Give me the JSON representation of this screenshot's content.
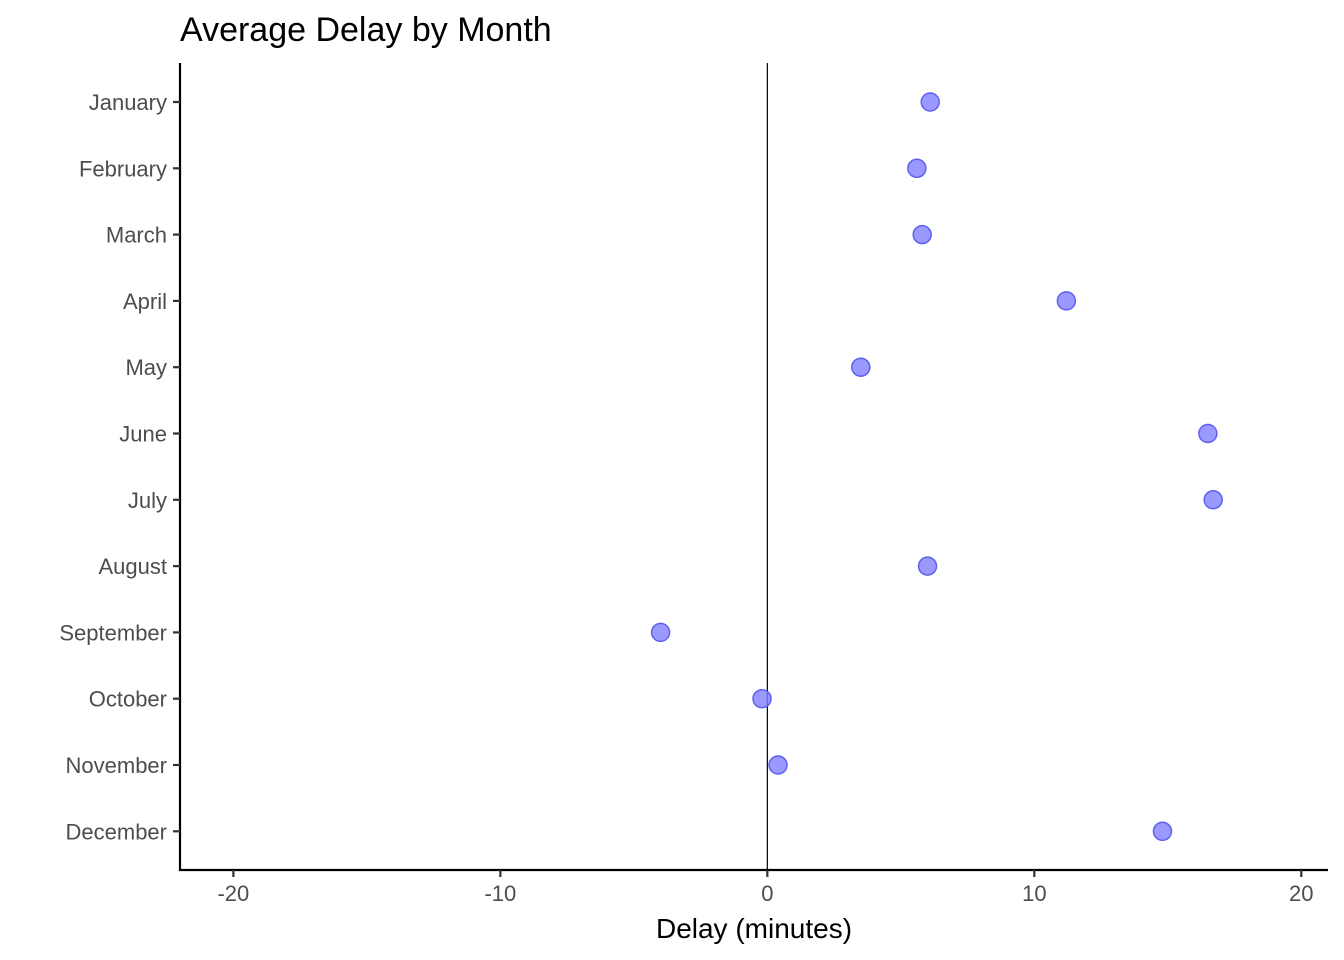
{
  "chart_data": {
    "type": "scatter",
    "title": "Average Delay by Month",
    "xlabel": "Delay (minutes)",
    "ylabel": "",
    "xlim": [
      -22.0,
      21.0
    ],
    "x_ticks": [
      -20,
      -10,
      0,
      10,
      20
    ],
    "x_tick_labels": [
      "-20",
      "-10",
      "0",
      "10",
      "20"
    ],
    "categories": [
      "January",
      "February",
      "March",
      "April",
      "May",
      "June",
      "July",
      "August",
      "September",
      "October",
      "November",
      "December"
    ],
    "values": [
      6.1,
      5.6,
      5.8,
      11.2,
      3.5,
      16.5,
      16.7,
      6.0,
      -4.0,
      -0.2,
      0.4,
      14.8
    ],
    "reference_line_x": 0,
    "grid": false,
    "legend": "none",
    "point_color": "#8080ff",
    "point_stroke": "#6060f0"
  }
}
